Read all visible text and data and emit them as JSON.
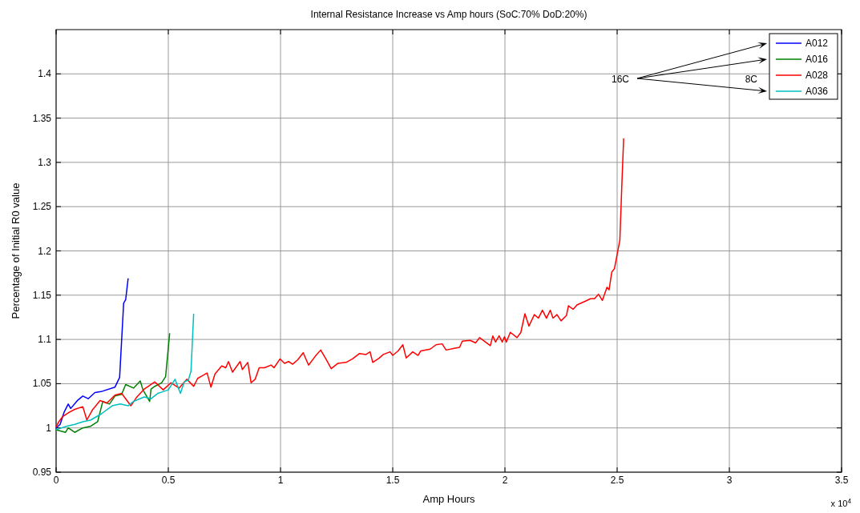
{
  "chart_data": {
    "type": "line",
    "title": "Internal Resistance Increase vs Amp hours (SoC:70%   DoD:20%)",
    "xlabel": "Amp Hours",
    "ylabel": "Percentage of Initial R0 value",
    "annotations": [
      "16C",
      "8C",
      "x 10$^{4}$"
    ],
    "xlim": [
      0,
      3.5
    ],
    "xticks": [
      0,
      0.5,
      1,
      1.5,
      2,
      2.5,
      3,
      3.5
    ],
    "ylim": [
      0.95,
      1.45
    ],
    "yticks": [
      0.95,
      1,
      1.05,
      1.1,
      1.15,
      1.2,
      1.25,
      1.3,
      1.35,
      1.4
    ],
    "grid": true,
    "legend": "top right",
    "series": [
      {
        "name": "A012",
        "color": "#0000ff",
        "x": [
          0,
          0.018,
          0.036,
          0.054,
          0.065,
          0.095,
          0.119,
          0.143,
          0.173,
          0.2,
          0.262,
          0.283,
          0.301,
          0.31,
          0.321
        ],
        "values": [
          1.0,
          1.004,
          1.018,
          1.027,
          1.022,
          1.031,
          1.036,
          1.033,
          1.04,
          1.041,
          1.046,
          1.057,
          1.141,
          1.145,
          1.169
        ]
      },
      {
        "name": "A016",
        "color": "#008000",
        "x": [
          0,
          0.042,
          0.054,
          0.083,
          0.119,
          0.155,
          0.185,
          0.2,
          0.208,
          0.238,
          0.262,
          0.292,
          0.31,
          0.345,
          0.375,
          0.387,
          0.417,
          0.423,
          0.44,
          0.47,
          0.488,
          0.506
        ],
        "values": [
          0.998,
          0.995,
          1.0,
          0.995,
          1.0,
          1.002,
          1.007,
          1.022,
          1.03,
          1.027,
          1.036,
          1.038,
          1.049,
          1.045,
          1.053,
          1.043,
          1.03,
          1.044,
          1.047,
          1.051,
          1.058,
          1.107
        ]
      },
      {
        "name": "A028",
        "color": "#ff0000",
        "x": [
          0,
          0.012,
          0.03,
          0.06,
          0.083,
          0.119,
          0.137,
          0.161,
          0.196,
          0.226,
          0.262,
          0.292,
          0.333,
          0.357,
          0.393,
          0.44,
          0.477,
          0.512,
          0.548,
          0.583,
          0.613,
          0.631,
          0.673,
          0.69,
          0.708,
          0.738,
          0.756,
          0.768,
          0.786,
          0.82,
          0.83,
          0.854,
          0.869,
          0.887,
          0.905,
          0.929,
          0.958,
          0.971,
          0.998,
          1.018,
          1.036,
          1.054,
          1.077,
          1.101,
          1.125,
          1.155,
          1.179,
          1.202,
          1.226,
          1.256,
          1.292,
          1.321,
          1.351,
          1.381,
          1.399,
          1.411,
          1.44,
          1.458,
          1.488,
          1.5,
          1.524,
          1.545,
          1.56,
          1.589,
          1.613,
          1.625,
          1.667,
          1.693,
          1.72,
          1.738,
          1.774,
          1.798,
          1.81,
          1.845,
          1.869,
          1.887,
          1.935,
          1.946,
          1.958,
          1.974,
          1.988,
          1.998,
          2.006,
          2.024,
          2.054,
          2.071,
          2.089,
          2.107,
          2.131,
          2.149,
          2.167,
          2.185,
          2.202,
          2.214,
          2.232,
          2.25,
          2.274,
          2.283,
          2.304,
          2.321,
          2.339,
          2.357,
          2.381,
          2.399,
          2.417,
          2.434,
          2.455,
          2.464,
          2.476,
          2.488,
          2.512,
          2.521,
          2.529
        ],
        "values": [
          1.001,
          1.007,
          1.013,
          1.018,
          1.021,
          1.024,
          1.009,
          1.02,
          1.031,
          1.028,
          1.037,
          1.039,
          1.025,
          1.034,
          1.044,
          1.052,
          1.043,
          1.051,
          1.045,
          1.055,
          1.047,
          1.056,
          1.062,
          1.046,
          1.061,
          1.07,
          1.068,
          1.075,
          1.063,
          1.075,
          1.066,
          1.074,
          1.051,
          1.055,
          1.068,
          1.068,
          1.071,
          1.068,
          1.078,
          1.073,
          1.075,
          1.072,
          1.077,
          1.085,
          1.071,
          1.081,
          1.088,
          1.078,
          1.067,
          1.073,
          1.074,
          1.078,
          1.084,
          1.083,
          1.086,
          1.074,
          1.079,
          1.083,
          1.086,
          1.082,
          1.087,
          1.094,
          1.079,
          1.086,
          1.082,
          1.087,
          1.089,
          1.094,
          1.095,
          1.088,
          1.09,
          1.091,
          1.098,
          1.099,
          1.096,
          1.102,
          1.093,
          1.104,
          1.097,
          1.104,
          1.097,
          1.103,
          1.097,
          1.108,
          1.102,
          1.108,
          1.129,
          1.115,
          1.128,
          1.124,
          1.133,
          1.124,
          1.133,
          1.124,
          1.128,
          1.121,
          1.127,
          1.138,
          1.134,
          1.139,
          1.141,
          1.143,
          1.146,
          1.146,
          1.151,
          1.144,
          1.159,
          1.156,
          1.176,
          1.18,
          1.212,
          1.275,
          1.327
        ]
      },
      {
        "name": "A036",
        "color": "#00bfbf",
        "x": [
          0,
          0.048,
          0.083,
          0.119,
          0.155,
          0.202,
          0.25,
          0.286,
          0.321,
          0.345,
          0.393,
          0.423,
          0.453,
          0.477,
          0.5,
          0.53,
          0.554,
          0.571,
          0.589,
          0.601,
          0.613
        ],
        "values": [
          0.998,
          1.002,
          1.004,
          1.007,
          1.009,
          1.016,
          1.025,
          1.027,
          1.025,
          1.03,
          1.035,
          1.033,
          1.039,
          1.041,
          1.043,
          1.055,
          1.039,
          1.052,
          1.054,
          1.064,
          1.129
        ]
      }
    ]
  }
}
